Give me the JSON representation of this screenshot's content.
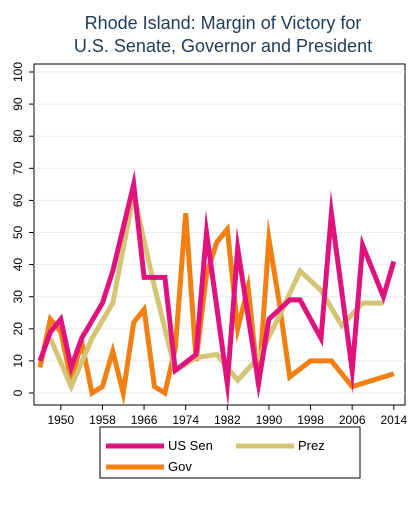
{
  "chart_data": {
    "type": "line",
    "title": [
      "Rhode Island: Margin of Victory for",
      "U.S. Senate, Governor and President"
    ],
    "xlabel": "",
    "ylabel": "",
    "xlim": [
      1946,
      2015
    ],
    "ylim": [
      0,
      100
    ],
    "x_ticks": [
      "1950",
      "1958",
      "1966",
      "1974",
      "1982",
      "1990",
      "1998",
      "2006",
      "2014"
    ],
    "y_ticks": [
      "0",
      "10",
      "20",
      "30",
      "40",
      "50",
      "60",
      "70",
      "80",
      "90",
      "100"
    ],
    "grid": "horizontal",
    "legend_position": "bottom",
    "series": [
      {
        "name": "US Sen",
        "color": "#e0137e",
        "points": [
          [
            1946,
            10
          ],
          [
            1948,
            19
          ],
          [
            1950,
            23
          ],
          [
            1952,
            8
          ],
          [
            1954,
            17
          ],
          [
            1958,
            28
          ],
          [
            1960,
            38
          ],
          [
            1964,
            65
          ],
          [
            1966,
            36
          ],
          [
            1970,
            36
          ],
          [
            1972,
            7
          ],
          [
            1976,
            12
          ],
          [
            1978,
            50
          ],
          [
            1982,
            3
          ],
          [
            1984,
            45
          ],
          [
            1988,
            3
          ],
          [
            1990,
            23
          ],
          [
            1994,
            29
          ],
          [
            1996,
            29
          ],
          [
            2000,
            17
          ],
          [
            2002,
            56
          ],
          [
            2006,
            7
          ],
          [
            2008,
            46
          ],
          [
            2012,
            30
          ],
          [
            2014,
            41
          ]
        ]
      },
      {
        "name": "Prez",
        "color": "#d5c473",
        "points": [
          [
            1948,
            17
          ],
          [
            1952,
            2
          ],
          [
            1956,
            17
          ],
          [
            1960,
            28
          ],
          [
            1964,
            62
          ],
          [
            1968,
            33
          ],
          [
            1972,
            7
          ],
          [
            1976,
            11
          ],
          [
            1980,
            12
          ],
          [
            1984,
            4
          ],
          [
            1988,
            11
          ],
          [
            1992,
            24
          ],
          [
            1996,
            38
          ],
          [
            2000,
            32
          ],
          [
            2004,
            21
          ],
          [
            2008,
            28
          ],
          [
            2012,
            28
          ]
        ]
      },
      {
        "name": "Gov",
        "color": "#f17f11",
        "points": [
          [
            1946,
            8
          ],
          [
            1948,
            23
          ],
          [
            1950,
            19
          ],
          [
            1952,
            4
          ],
          [
            1954,
            16
          ],
          [
            1956,
            0
          ],
          [
            1958,
            2
          ],
          [
            1960,
            13
          ],
          [
            1962,
            0
          ],
          [
            1964,
            22
          ],
          [
            1966,
            26
          ],
          [
            1968,
            2
          ],
          [
            1970,
            0
          ],
          [
            1972,
            14
          ],
          [
            1974,
            56
          ],
          [
            1976,
            10
          ],
          [
            1978,
            37
          ],
          [
            1980,
            47
          ],
          [
            1982,
            51
          ],
          [
            1984,
            20
          ],
          [
            1986,
            33
          ],
          [
            1988,
            2
          ],
          [
            1990,
            48
          ],
          [
            1992,
            28
          ],
          [
            1994,
            5
          ],
          [
            1998,
            10
          ],
          [
            2002,
            10
          ],
          [
            2006,
            2
          ],
          [
            2010,
            4
          ],
          [
            2014,
            6
          ]
        ]
      }
    ]
  }
}
